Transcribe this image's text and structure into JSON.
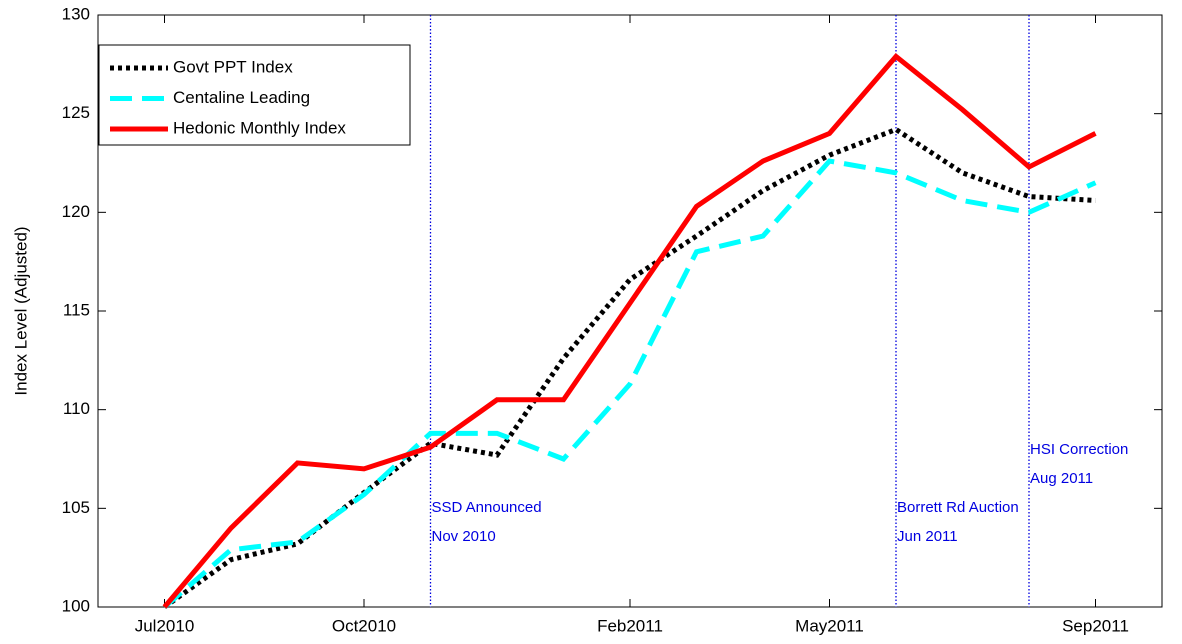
{
  "chart_data": {
    "type": "line",
    "y_label": "Index Level (Adjusted)",
    "x": [
      "2010-07",
      "2010-08",
      "2010-09",
      "2010-10",
      "2010-11",
      "2010-12",
      "2011-01",
      "2011-02",
      "2011-03",
      "2011-04",
      "2011-05",
      "2011-06",
      "2011-07",
      "2011-08",
      "2011-09"
    ],
    "xlim": [
      "2010-06",
      "2011-10"
    ],
    "xticks": [
      {
        "value": "2010-07",
        "label": "Jul2010"
      },
      {
        "value": "2010-10",
        "label": "Oct2010"
      },
      {
        "value": "2011-02",
        "label": "Feb2011"
      },
      {
        "value": "2011-05",
        "label": "May2011"
      },
      {
        "value": "2011-09",
        "label": "Sep2011"
      }
    ],
    "ylim": [
      100,
      130
    ],
    "yticks": [
      100,
      105,
      110,
      115,
      120,
      125,
      130
    ],
    "legend": "upper left",
    "series": [
      {
        "name": "Govt PPT Index",
        "color": "#000000",
        "style": "dotted",
        "values": [
          100,
          102.4,
          103.2,
          105.8,
          108.3,
          107.7,
          112.6,
          116.6,
          118.8,
          121.1,
          122.9,
          124.2,
          122.0,
          120.8,
          120.6
        ]
      },
      {
        "name": "Centaline Leading",
        "color": "#00ffff",
        "style": "dashed",
        "values": [
          100,
          102.9,
          103.3,
          105.7,
          108.8,
          108.8,
          107.5,
          111.3,
          118.0,
          118.8,
          122.6,
          122.0,
          120.6,
          120.0,
          121.5
        ]
      },
      {
        "name": "Hedonic Monthly Index",
        "color": "#ff0000",
        "style": "solid",
        "values": [
          100,
          104.0,
          107.3,
          107.0,
          108.1,
          110.5,
          110.5,
          115.4,
          120.3,
          122.6,
          124.0,
          127.9,
          125.2,
          122.3,
          124.0
        ]
      }
    ],
    "events": [
      {
        "x": "2010-11",
        "lines": [
          "SSD Announced",
          "Nov 2010"
        ]
      },
      {
        "x": "2011-06",
        "lines": [
          "Borrett Rd Auction",
          "Jun 2011"
        ]
      },
      {
        "x": "2011-08",
        "lines": [
          "HSI Correction",
          "Aug 2011"
        ]
      }
    ],
    "event_color": "#0000e0"
  }
}
